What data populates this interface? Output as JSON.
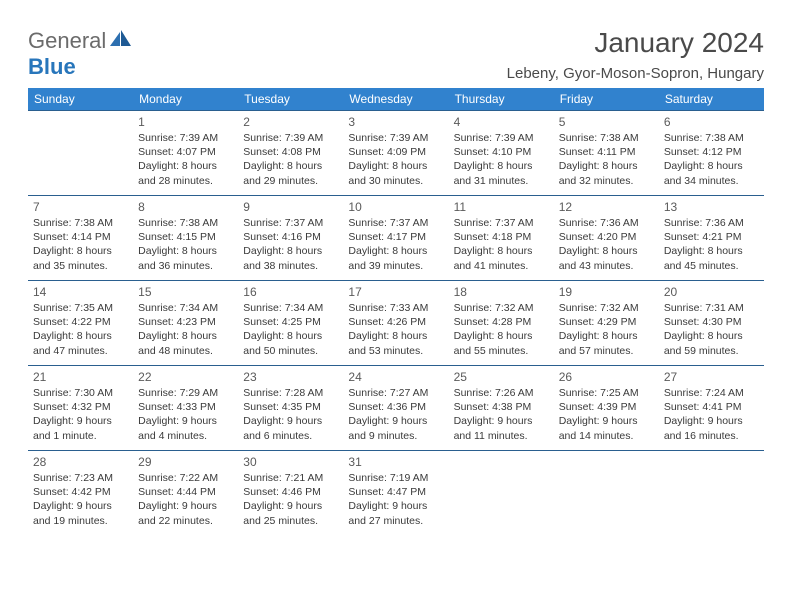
{
  "logo": {
    "word1": "General",
    "word2": "Blue"
  },
  "title": "January 2024",
  "location": "Lebeny, Gyor-Moson-Sopron, Hungary",
  "colors": {
    "headerBg": "#3182ce",
    "headerText": "#ffffff",
    "rowBorder": "#2a5f8f",
    "bodyText": "#3a3a3a",
    "titleText": "#4a4a4a",
    "logoGray": "#6b6b6b",
    "logoBlue": "#2876bb"
  },
  "dayNames": [
    "Sunday",
    "Monday",
    "Tuesday",
    "Wednesday",
    "Thursday",
    "Friday",
    "Saturday"
  ],
  "weeks": [
    [
      null,
      {
        "n": "1",
        "sr": "7:39 AM",
        "ss": "4:07 PM",
        "dl": "8 hours and 28 minutes."
      },
      {
        "n": "2",
        "sr": "7:39 AM",
        "ss": "4:08 PM",
        "dl": "8 hours and 29 minutes."
      },
      {
        "n": "3",
        "sr": "7:39 AM",
        "ss": "4:09 PM",
        "dl": "8 hours and 30 minutes."
      },
      {
        "n": "4",
        "sr": "7:39 AM",
        "ss": "4:10 PM",
        "dl": "8 hours and 31 minutes."
      },
      {
        "n": "5",
        "sr": "7:38 AM",
        "ss": "4:11 PM",
        "dl": "8 hours and 32 minutes."
      },
      {
        "n": "6",
        "sr": "7:38 AM",
        "ss": "4:12 PM",
        "dl": "8 hours and 34 minutes."
      }
    ],
    [
      {
        "n": "7",
        "sr": "7:38 AM",
        "ss": "4:14 PM",
        "dl": "8 hours and 35 minutes."
      },
      {
        "n": "8",
        "sr": "7:38 AM",
        "ss": "4:15 PM",
        "dl": "8 hours and 36 minutes."
      },
      {
        "n": "9",
        "sr": "7:37 AM",
        "ss": "4:16 PM",
        "dl": "8 hours and 38 minutes."
      },
      {
        "n": "10",
        "sr": "7:37 AM",
        "ss": "4:17 PM",
        "dl": "8 hours and 39 minutes."
      },
      {
        "n": "11",
        "sr": "7:37 AM",
        "ss": "4:18 PM",
        "dl": "8 hours and 41 minutes."
      },
      {
        "n": "12",
        "sr": "7:36 AM",
        "ss": "4:20 PM",
        "dl": "8 hours and 43 minutes."
      },
      {
        "n": "13",
        "sr": "7:36 AM",
        "ss": "4:21 PM",
        "dl": "8 hours and 45 minutes."
      }
    ],
    [
      {
        "n": "14",
        "sr": "7:35 AM",
        "ss": "4:22 PM",
        "dl": "8 hours and 47 minutes."
      },
      {
        "n": "15",
        "sr": "7:34 AM",
        "ss": "4:23 PM",
        "dl": "8 hours and 48 minutes."
      },
      {
        "n": "16",
        "sr": "7:34 AM",
        "ss": "4:25 PM",
        "dl": "8 hours and 50 minutes."
      },
      {
        "n": "17",
        "sr": "7:33 AM",
        "ss": "4:26 PM",
        "dl": "8 hours and 53 minutes."
      },
      {
        "n": "18",
        "sr": "7:32 AM",
        "ss": "4:28 PM",
        "dl": "8 hours and 55 minutes."
      },
      {
        "n": "19",
        "sr": "7:32 AM",
        "ss": "4:29 PM",
        "dl": "8 hours and 57 minutes."
      },
      {
        "n": "20",
        "sr": "7:31 AM",
        "ss": "4:30 PM",
        "dl": "8 hours and 59 minutes."
      }
    ],
    [
      {
        "n": "21",
        "sr": "7:30 AM",
        "ss": "4:32 PM",
        "dl": "9 hours and 1 minute."
      },
      {
        "n": "22",
        "sr": "7:29 AM",
        "ss": "4:33 PM",
        "dl": "9 hours and 4 minutes."
      },
      {
        "n": "23",
        "sr": "7:28 AM",
        "ss": "4:35 PM",
        "dl": "9 hours and 6 minutes."
      },
      {
        "n": "24",
        "sr": "7:27 AM",
        "ss": "4:36 PM",
        "dl": "9 hours and 9 minutes."
      },
      {
        "n": "25",
        "sr": "7:26 AM",
        "ss": "4:38 PM",
        "dl": "9 hours and 11 minutes."
      },
      {
        "n": "26",
        "sr": "7:25 AM",
        "ss": "4:39 PM",
        "dl": "9 hours and 14 minutes."
      },
      {
        "n": "27",
        "sr": "7:24 AM",
        "ss": "4:41 PM",
        "dl": "9 hours and 16 minutes."
      }
    ],
    [
      {
        "n": "28",
        "sr": "7:23 AM",
        "ss": "4:42 PM",
        "dl": "9 hours and 19 minutes."
      },
      {
        "n": "29",
        "sr": "7:22 AM",
        "ss": "4:44 PM",
        "dl": "9 hours and 22 minutes."
      },
      {
        "n": "30",
        "sr": "7:21 AM",
        "ss": "4:46 PM",
        "dl": "9 hours and 25 minutes."
      },
      {
        "n": "31",
        "sr": "7:19 AM",
        "ss": "4:47 PM",
        "dl": "9 hours and 27 minutes."
      },
      null,
      null,
      null
    ]
  ],
  "labels": {
    "sunrise": "Sunrise: ",
    "sunset": "Sunset: ",
    "daylight": "Daylight: "
  }
}
